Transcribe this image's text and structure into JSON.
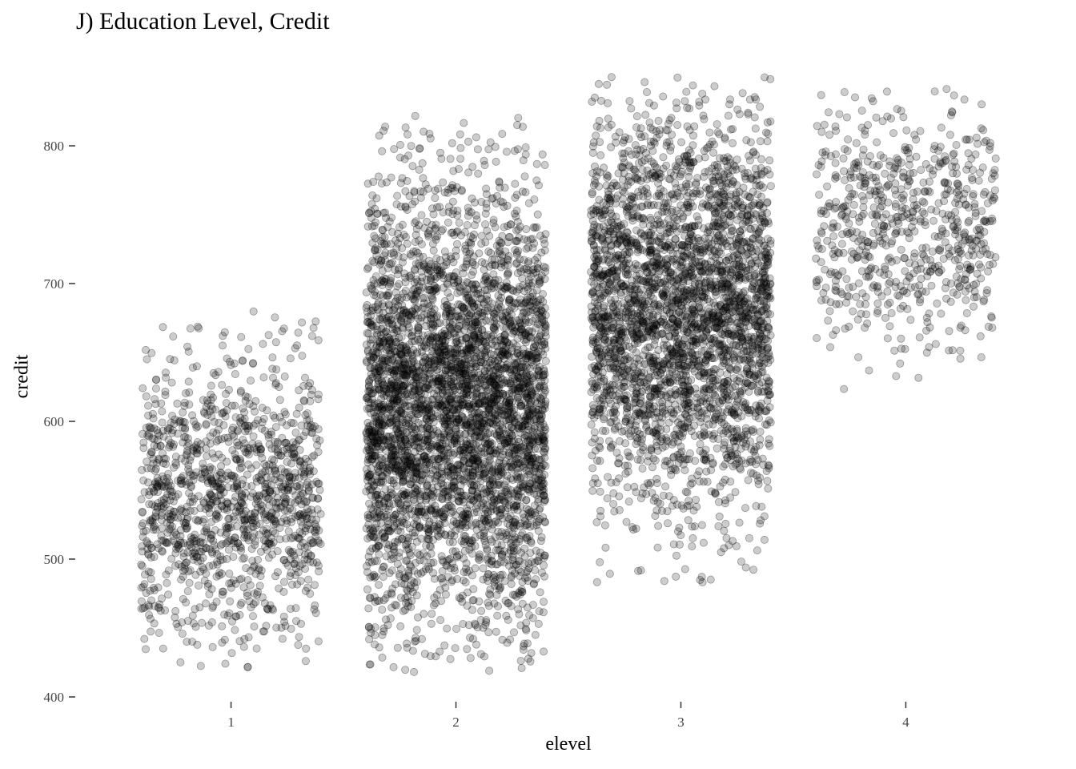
{
  "chart_data": {
    "type": "scatter",
    "title": "J) Education Level, Credit",
    "xlabel": "elevel",
    "ylabel": "credit",
    "x_ticks": [
      "1",
      "2",
      "3",
      "4"
    ],
    "y_ticks": [
      400,
      500,
      600,
      700,
      800
    ],
    "xlim": [
      0.4,
      4.6
    ],
    "ylim": [
      400,
      850
    ],
    "jitter_width": 0.4,
    "grid": false,
    "point_color": "#000000",
    "point_opacity": 0.2,
    "groups": [
      {
        "elevel": 1,
        "n": 1300,
        "y_min": 420,
        "y_max": 680,
        "y_center": 545
      },
      {
        "elevel": 2,
        "n": 4200,
        "y_min": 418,
        "y_max": 825,
        "y_center": 610
      },
      {
        "elevel": 3,
        "n": 3200,
        "y_min": 483,
        "y_max": 850,
        "y_center": 680
      },
      {
        "elevel": 4,
        "n": 700,
        "y_min": 623,
        "y_max": 845,
        "y_center": 740
      }
    ]
  }
}
